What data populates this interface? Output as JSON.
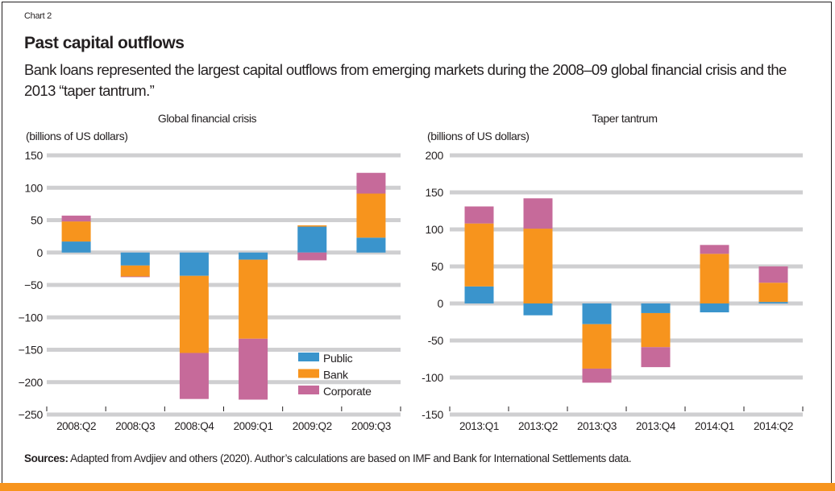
{
  "header": {
    "chart_label": "Chart 2",
    "title": "Past capital outflows",
    "subtitle": "Bank loans represented the largest capital outflows from emerging markets during the 2008–09 global financial crisis and the 2013 “taper tantrum.”"
  },
  "footer": {
    "sources_label": "Sources:",
    "sources_text": " Adapted from Avdjiev and others (2020). Author’s calculations are based on IMF and Bank for International Settlements data."
  },
  "colors": {
    "Public": "#3a94cc",
    "Bank": "#f7941d",
    "Corporate": "#c66a9a",
    "grid": "#cfcfd1",
    "accent_bar": "#f7941d"
  },
  "chart_data": [
    {
      "type": "bar",
      "stacked": true,
      "title": "Global financial crisis",
      "ylabel": "(billions of US dollars)",
      "xlabel": "",
      "ylim": [
        -250,
        150
      ],
      "yticks": [
        150,
        100,
        50,
        0,
        -50,
        -100,
        -150,
        -200,
        -250
      ],
      "ytick_labels": [
        "150",
        "100",
        "50",
        "0",
        "−50",
        "−100",
        "−150",
        "−200",
        "−250"
      ],
      "grid": true,
      "legend": "bottom-right",
      "categories": [
        "2008:Q2",
        "2008:Q3",
        "2008:Q4",
        "2009:Q1",
        "2009:Q2",
        "2009:Q3"
      ],
      "series": [
        {
          "name": "Public",
          "values": [
            17,
            -20,
            -36,
            -11,
            40,
            23
          ]
        },
        {
          "name": "Bank",
          "values": [
            31,
            -17,
            -119,
            -122,
            2,
            68
          ]
        },
        {
          "name": "Corporate",
          "values": [
            9,
            -1,
            -71,
            -94,
            -12,
            32
          ]
        }
      ]
    },
    {
      "type": "bar",
      "stacked": true,
      "title": "Taper tantrum",
      "ylabel": "(billions of US dollars)",
      "xlabel": "",
      "ylim": [
        -150,
        200
      ],
      "yticks": [
        200,
        150,
        100,
        50,
        0,
        -50,
        -100,
        -150
      ],
      "ytick_labels": [
        "200",
        "150",
        "100",
        "50",
        "0",
        "-50",
        "-100",
        "-150"
      ],
      "grid": true,
      "legend": "none",
      "categories": [
        "2013:Q1",
        "2013:Q2",
        "2013:Q3",
        "2013:Q4",
        "2014:Q1",
        "2014:Q2"
      ],
      "series": [
        {
          "name": "Public",
          "values": [
            23,
            -16,
            -28,
            -13,
            -12,
            2
          ]
        },
        {
          "name": "Bank",
          "values": [
            85,
            101,
            -60,
            -46,
            67,
            26
          ]
        },
        {
          "name": "Corporate",
          "values": [
            23,
            41,
            -19,
            -27,
            12,
            22
          ]
        }
      ]
    }
  ]
}
